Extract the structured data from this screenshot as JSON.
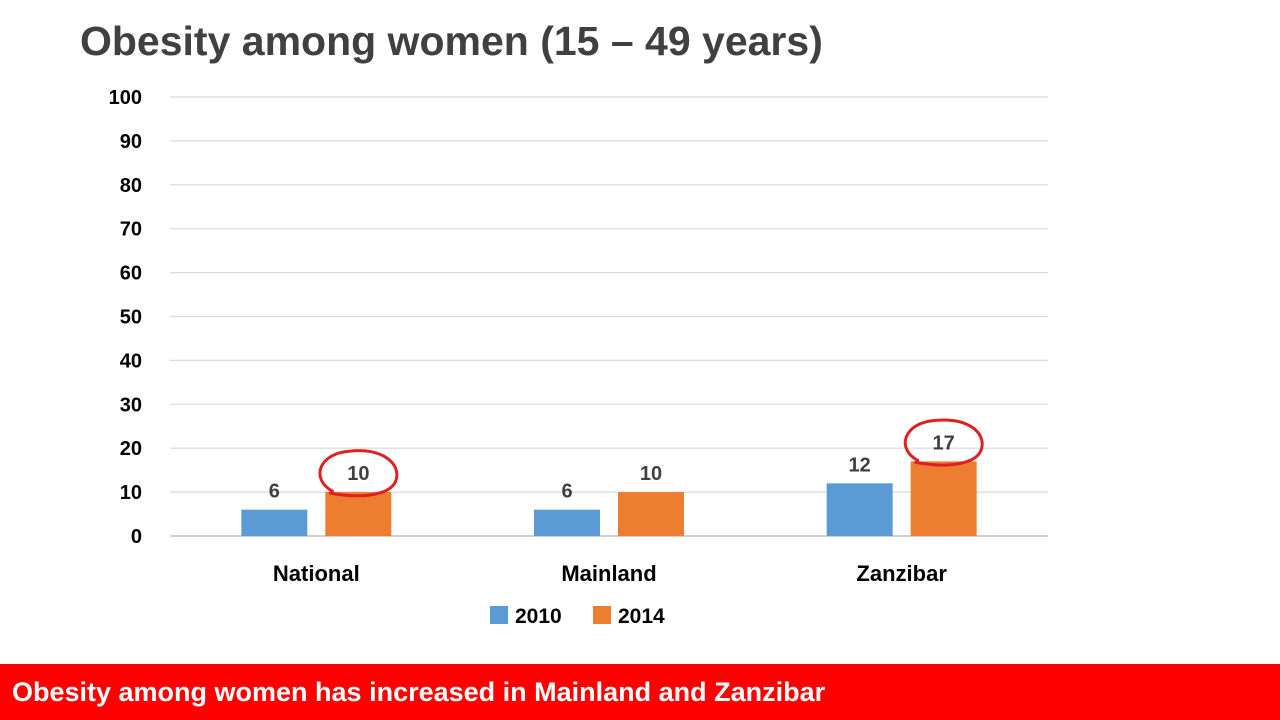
{
  "title": "Obesity among women (15 – 49 years)",
  "banner": "Obesity among women has increased in Mainland and Zanzibar",
  "chart_data": {
    "type": "bar",
    "categories": [
      "National",
      "Mainland",
      "Zanzibar"
    ],
    "series": [
      {
        "name": "2010",
        "values": [
          6,
          6,
          12
        ],
        "labels": [
          "6",
          "6",
          "12"
        ],
        "color": "#5b9bd5"
      },
      {
        "name": "2014",
        "values": [
          10,
          10,
          17
        ],
        "labels": [
          "10",
          "10",
          "17"
        ],
        "color": "#ed7d31"
      }
    ],
    "ylim": [
      0,
      100
    ],
    "yticks": [
      0,
      10,
      20,
      30,
      40,
      50,
      60,
      70,
      80,
      90,
      100
    ],
    "yticklabels": [
      "0",
      "10",
      "20",
      "30",
      "40",
      "50",
      "60",
      "70",
      "80",
      "90",
      "100"
    ],
    "grid": true,
    "legend": "bottom",
    "annotations": [
      {
        "type": "circle",
        "category": "National",
        "series": "2014",
        "color": "#e02020"
      },
      {
        "type": "circle",
        "category": "Zanzibar",
        "series": "2014",
        "color": "#e02020"
      }
    ]
  }
}
